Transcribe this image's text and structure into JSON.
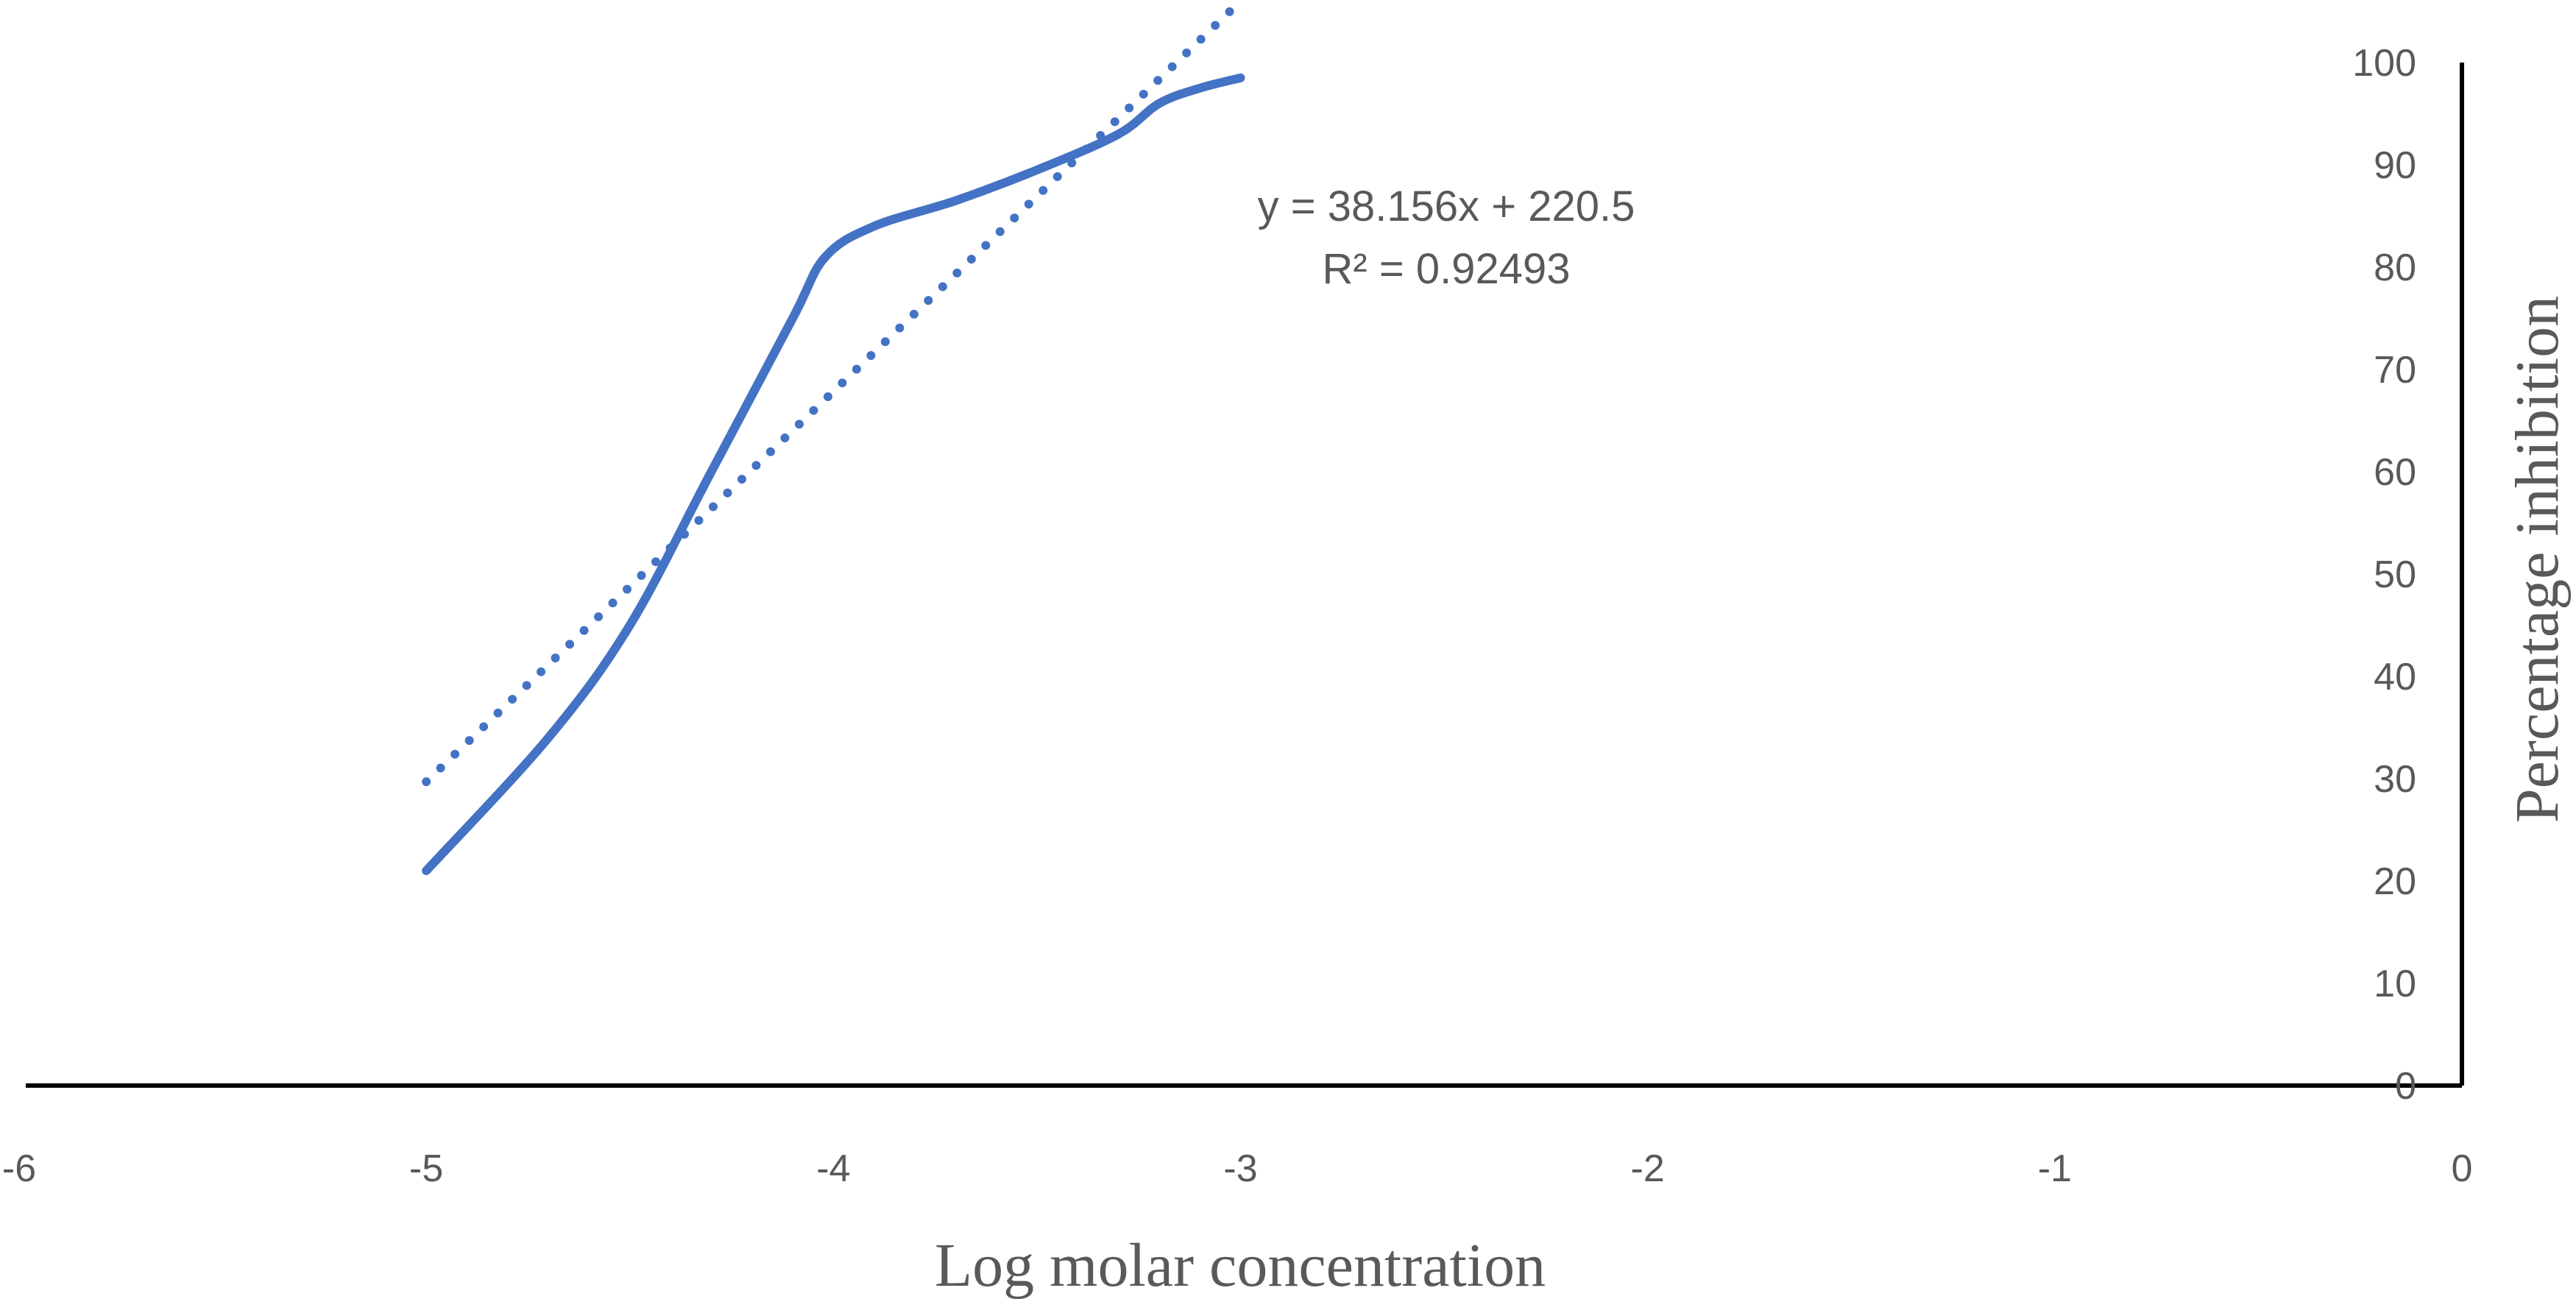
{
  "chart_data": {
    "type": "line",
    "title": "",
    "xlabel": "Log molar concentration",
    "ylabel": "Percentage inhibition",
    "xlim": [
      -6,
      0
    ],
    "ylim": [
      0,
      100
    ],
    "x_ticks": [
      -6,
      -5,
      -4,
      -3,
      -2,
      -1,
      0
    ],
    "y_ticks": [
      0,
      10,
      20,
      30,
      40,
      50,
      60,
      70,
      80,
      90,
      100
    ],
    "x_tick_labels": [
      "-6",
      "-5",
      "-4",
      "-3",
      "-2",
      "-1",
      "0"
    ],
    "y_tick_labels": [
      "0",
      "10",
      "20",
      "30",
      "40",
      "50",
      "60",
      "70",
      "80",
      "90",
      "100"
    ],
    "y_axis_position": "right",
    "grid": false,
    "legend": "none",
    "series": [
      {
        "style": "solid-smooth",
        "color": "#4472C4",
        "x": [
          -5,
          -4.7,
          -4.5,
          -4.3,
          -4.1,
          -4.02,
          -3.9,
          -3.7,
          -3.5,
          -3.3,
          -3.2,
          -3.1,
          -3.0
        ],
        "y": [
          21,
          34,
          45,
          60,
          75,
          81,
          84,
          86.5,
          89.5,
          93,
          96,
          97.5,
          98.5
        ]
      },
      {
        "style": "dotted-trendline",
        "color": "#4472C4",
        "x": [
          -5,
          -3
        ],
        "y": [
          29.7,
          106
        ]
      }
    ],
    "annotations": {
      "equation": "y = 38.156x + 220.5",
      "r_squared": "R² = 0.92493"
    }
  }
}
